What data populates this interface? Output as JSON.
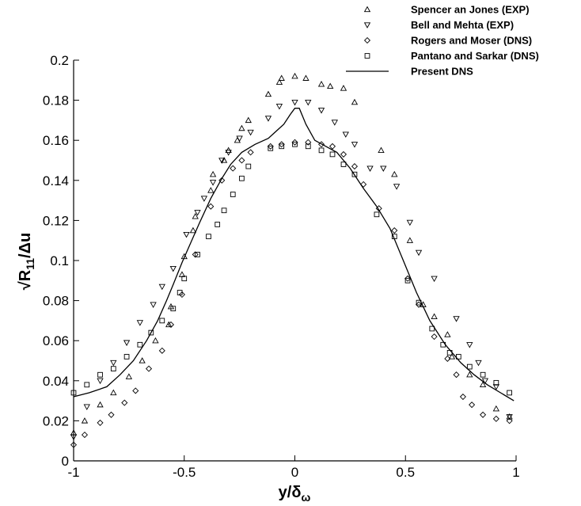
{
  "chart_data": {
    "type": "scatter",
    "xlabel": "y/δ",
    "xlabel_sub": "ω",
    "ylabel_prefix": "√R",
    "ylabel_sub": "11",
    "ylabel_suffix": "/Δu",
    "xlim": [
      -1,
      1
    ],
    "ylim": [
      0,
      0.2
    ],
    "xticks": [
      -1,
      -0.5,
      0,
      0.5,
      1
    ],
    "xtick_labels": [
      "-1",
      "-0.5",
      "0",
      "0.5",
      "1"
    ],
    "yticks": [
      0,
      0.02,
      0.04,
      0.06,
      0.08,
      0.1,
      0.12,
      0.14,
      0.16,
      0.18,
      0.2
    ],
    "ytick_labels": [
      "0",
      "0.02",
      "0.04",
      "0.06",
      "0.08",
      "0.1",
      "0.12",
      "0.14",
      "0.16",
      "0.18",
      "0.2"
    ],
    "grid": false,
    "legend_position": "top-right outside plot",
    "series": [
      {
        "name": "Spencer an Jones (EXP)",
        "marker": "triangle-up",
        "points": [
          [
            -1.0,
            0.014
          ],
          [
            -0.95,
            0.02
          ],
          [
            -0.88,
            0.028
          ],
          [
            -0.82,
            0.034
          ],
          [
            -0.75,
            0.042
          ],
          [
            -0.69,
            0.05
          ],
          [
            -0.63,
            0.06
          ],
          [
            -0.57,
            0.068
          ],
          [
            -0.56,
            0.077
          ],
          [
            -0.51,
            0.093
          ],
          [
            -0.5,
            0.102
          ],
          [
            -0.46,
            0.115
          ],
          [
            -0.45,
            0.122
          ],
          [
            -0.38,
            0.135
          ],
          [
            -0.37,
            0.143
          ],
          [
            -0.32,
            0.15
          ],
          [
            -0.3,
            0.155
          ],
          [
            -0.26,
            0.16
          ],
          [
            -0.24,
            0.166
          ],
          [
            -0.21,
            0.17
          ],
          [
            -0.12,
            0.183
          ],
          [
            -0.07,
            0.189
          ],
          [
            -0.06,
            0.191
          ],
          [
            0.0,
            0.192
          ],
          [
            0.05,
            0.191
          ],
          [
            0.12,
            0.188
          ],
          [
            0.16,
            0.187
          ],
          [
            0.22,
            0.186
          ],
          [
            0.27,
            0.179
          ],
          [
            0.39,
            0.155
          ],
          [
            0.45,
            0.143
          ],
          [
            0.52,
            0.11
          ],
          [
            0.58,
            0.078
          ],
          [
            0.63,
            0.072
          ],
          [
            0.69,
            0.063
          ],
          [
            0.71,
            0.052
          ],
          [
            0.79,
            0.043
          ],
          [
            0.85,
            0.038
          ],
          [
            0.91,
            0.026
          ],
          [
            0.97,
            0.022
          ]
        ]
      },
      {
        "name": "Bell and Mehta (EXP)",
        "marker": "triangle-down",
        "points": [
          [
            -1.0,
            0.012
          ],
          [
            -0.94,
            0.027
          ],
          [
            -0.88,
            0.04
          ],
          [
            -0.82,
            0.049
          ],
          [
            -0.76,
            0.059
          ],
          [
            -0.7,
            0.069
          ],
          [
            -0.64,
            0.078
          ],
          [
            -0.6,
            0.087
          ],
          [
            -0.55,
            0.096
          ],
          [
            -0.49,
            0.113
          ],
          [
            -0.44,
            0.124
          ],
          [
            -0.41,
            0.131
          ],
          [
            -0.37,
            0.139
          ],
          [
            -0.33,
            0.15
          ],
          [
            -0.3,
            0.154
          ],
          [
            -0.25,
            0.161
          ],
          [
            -0.2,
            0.164
          ],
          [
            -0.12,
            0.171
          ],
          [
            -0.07,
            0.177
          ],
          [
            0.0,
            0.179
          ],
          [
            0.06,
            0.179
          ],
          [
            0.12,
            0.175
          ],
          [
            0.18,
            0.169
          ],
          [
            0.23,
            0.163
          ],
          [
            0.27,
            0.158
          ],
          [
            0.34,
            0.146
          ],
          [
            0.4,
            0.146
          ],
          [
            0.46,
            0.137
          ],
          [
            0.52,
            0.119
          ],
          [
            0.56,
            0.104
          ],
          [
            0.63,
            0.091
          ],
          [
            0.73,
            0.071
          ],
          [
            0.79,
            0.058
          ],
          [
            0.83,
            0.049
          ],
          [
            0.86,
            0.04
          ],
          [
            0.91,
            0.037
          ],
          [
            0.97,
            0.022
          ]
        ]
      },
      {
        "name": "Rogers and Moser (DNS)",
        "marker": "diamond",
        "points": [
          [
            -1.0,
            0.008
          ],
          [
            -0.95,
            0.013
          ],
          [
            -0.88,
            0.019
          ],
          [
            -0.83,
            0.023
          ],
          [
            -0.77,
            0.029
          ],
          [
            -0.72,
            0.035
          ],
          [
            -0.66,
            0.046
          ],
          [
            -0.6,
            0.055
          ],
          [
            -0.56,
            0.068
          ],
          [
            -0.51,
            0.083
          ],
          [
            -0.45,
            0.103
          ],
          [
            -0.38,
            0.127
          ],
          [
            -0.33,
            0.14
          ],
          [
            -0.28,
            0.146
          ],
          [
            -0.24,
            0.15
          ],
          [
            -0.2,
            0.154
          ],
          [
            -0.11,
            0.157
          ],
          [
            -0.06,
            0.158
          ],
          [
            0.0,
            0.159
          ],
          [
            0.06,
            0.159
          ],
          [
            0.12,
            0.158
          ],
          [
            0.17,
            0.157
          ],
          [
            0.22,
            0.153
          ],
          [
            0.27,
            0.147
          ],
          [
            0.31,
            0.138
          ],
          [
            0.38,
            0.126
          ],
          [
            0.45,
            0.115
          ],
          [
            0.51,
            0.091
          ],
          [
            0.56,
            0.078
          ],
          [
            0.63,
            0.062
          ],
          [
            0.69,
            0.051
          ],
          [
            0.73,
            0.043
          ],
          [
            0.76,
            0.032
          ],
          [
            0.8,
            0.028
          ],
          [
            0.85,
            0.023
          ],
          [
            0.91,
            0.021
          ],
          [
            0.97,
            0.02
          ]
        ]
      },
      {
        "name": "Pantano and  Sarkar (DNS)",
        "marker": "square",
        "points": [
          [
            -1.0,
            0.034
          ],
          [
            -0.94,
            0.038
          ],
          [
            -0.88,
            0.043
          ],
          [
            -0.82,
            0.046
          ],
          [
            -0.76,
            0.052
          ],
          [
            -0.7,
            0.058
          ],
          [
            -0.65,
            0.064
          ],
          [
            -0.6,
            0.07
          ],
          [
            -0.55,
            0.076
          ],
          [
            -0.52,
            0.084
          ],
          [
            -0.5,
            0.091
          ],
          [
            -0.44,
            0.103
          ],
          [
            -0.39,
            0.112
          ],
          [
            -0.35,
            0.118
          ],
          [
            -0.32,
            0.125
          ],
          [
            -0.28,
            0.133
          ],
          [
            -0.24,
            0.141
          ],
          [
            -0.21,
            0.147
          ],
          [
            -0.11,
            0.156
          ],
          [
            -0.06,
            0.157
          ],
          [
            0.0,
            0.158
          ],
          [
            0.06,
            0.157
          ],
          [
            0.12,
            0.155
          ],
          [
            0.17,
            0.153
          ],
          [
            0.22,
            0.148
          ],
          [
            0.27,
            0.143
          ],
          [
            0.37,
            0.123
          ],
          [
            0.45,
            0.112
          ],
          [
            0.51,
            0.09
          ],
          [
            0.56,
            0.079
          ],
          [
            0.62,
            0.066
          ],
          [
            0.67,
            0.058
          ],
          [
            0.7,
            0.054
          ],
          [
            0.74,
            0.052
          ],
          [
            0.79,
            0.047
          ],
          [
            0.85,
            0.043
          ],
          [
            0.91,
            0.039
          ],
          [
            0.97,
            0.034
          ]
        ]
      },
      {
        "name": "Present DNS",
        "marker": "line",
        "points": [
          [
            -1.0,
            0.032
          ],
          [
            -0.93,
            0.034
          ],
          [
            -0.85,
            0.037
          ],
          [
            -0.79,
            0.043
          ],
          [
            -0.73,
            0.05
          ],
          [
            -0.67,
            0.06
          ],
          [
            -0.62,
            0.07
          ],
          [
            -0.58,
            0.08
          ],
          [
            -0.55,
            0.088
          ],
          [
            -0.51,
            0.099
          ],
          [
            -0.47,
            0.109
          ],
          [
            -0.43,
            0.119
          ],
          [
            -0.38,
            0.131
          ],
          [
            -0.33,
            0.141
          ],
          [
            -0.29,
            0.148
          ],
          [
            -0.24,
            0.154
          ],
          [
            -0.18,
            0.158
          ],
          [
            -0.12,
            0.161
          ],
          [
            -0.09,
            0.164
          ],
          [
            -0.05,
            0.168
          ],
          [
            -0.02,
            0.173
          ],
          [
            0.0,
            0.176
          ],
          [
            0.02,
            0.176
          ],
          [
            0.05,
            0.168
          ],
          [
            0.09,
            0.16
          ],
          [
            0.14,
            0.157
          ],
          [
            0.19,
            0.154
          ],
          [
            0.25,
            0.146
          ],
          [
            0.31,
            0.136
          ],
          [
            0.37,
            0.127
          ],
          [
            0.43,
            0.116
          ],
          [
            0.49,
            0.1
          ],
          [
            0.55,
            0.084
          ],
          [
            0.61,
            0.07
          ],
          [
            0.68,
            0.058
          ],
          [
            0.75,
            0.049
          ],
          [
            0.81,
            0.043
          ],
          [
            0.87,
            0.038
          ],
          [
            0.93,
            0.034
          ],
          [
            0.99,
            0.03
          ]
        ]
      }
    ]
  }
}
